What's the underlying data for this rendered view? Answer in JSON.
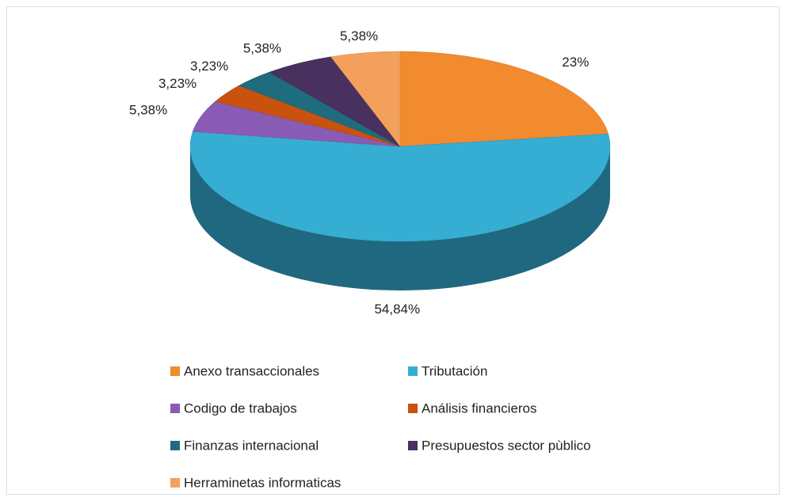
{
  "chart_data": {
    "type": "pie3d",
    "categories": [
      "Anexo transaccionales",
      "Tributación",
      "Codigo de trabajos",
      "Análisis financieros",
      "Finanzas internacional",
      "Presupuestos sector pùblico",
      "Herraminetas informaticas"
    ],
    "values": [
      23,
      54.84,
      5.38,
      3.23,
      3.23,
      5.38,
      5.38
    ],
    "value_labels": [
      "23%",
      "54,84%",
      "5,38%",
      "3,23%",
      "3,23%",
      "5,38%",
      "5,38%"
    ],
    "colors": [
      "#f28a2e",
      "#36aed3",
      "#8a5bb4",
      "#c8520e",
      "#1e6c7e",
      "#48305f",
      "#f3a05c"
    ],
    "legend": "bottom"
  }
}
